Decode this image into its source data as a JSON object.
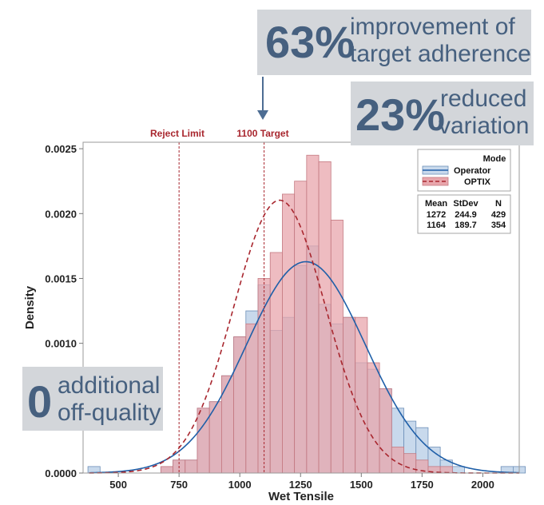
{
  "chart_data": {
    "type": "histogram",
    "xlabel": "Wet Tensile",
    "ylabel": "Density",
    "xlim": [
      355,
      2150
    ],
    "ylim": [
      0,
      0.00255
    ],
    "xticks": [
      500,
      750,
      1000,
      1250,
      1500,
      1750,
      2000
    ],
    "yticks": [
      0.0,
      0.0005,
      0.001,
      0.0015,
      0.002,
      0.0025
    ],
    "ytick_labels": [
      "0.0000",
      "0.0005",
      "0.0010",
      "0.0015",
      "0.0020",
      "0.0025"
    ],
    "bin_width": 50,
    "first_bin_start": 375,
    "series": [
      {
        "name": "Operator",
        "mean": 1272,
        "stdev": 244.9,
        "n": 429,
        "fill": "#c8d9ec",
        "stroke": "#6d8fb8",
        "curve": "#1f5fa8",
        "dash": "none",
        "values": [
          5e-05,
          0,
          0,
          0,
          0,
          0,
          5e-05,
          0.0001,
          0.0001,
          0.0005,
          0.00055,
          0.00075,
          0.00105,
          0.00125,
          0.00145,
          0.0011,
          0.0012,
          0.0016,
          0.00175,
          0.0013,
          0.00115,
          0.0012,
          0.00085,
          0.0008,
          0.00065,
          0.0005,
          0.0004,
          0.00035,
          0.0002,
          0.0001,
          5e-05,
          0,
          0,
          0,
          5e-05,
          5e-05
        ]
      },
      {
        "name": "OPTIX",
        "mean": 1164,
        "stdev": 189.7,
        "n": 354,
        "fill": "#e8a6ac",
        "stroke": "#c47a82",
        "curve": "#a8262e",
        "dash": "6,4",
        "values": [
          0,
          0,
          0,
          0,
          0,
          0,
          5e-05,
          0.0001,
          0.0001,
          0.0005,
          0.00055,
          0.00075,
          0.00105,
          0.00115,
          0.0015,
          0.0017,
          0.00215,
          0.00225,
          0.00245,
          0.0024,
          0.00195,
          0.0012,
          0.0012,
          0.00085,
          0.00065,
          0.0002,
          0.00015,
          0.0001,
          5e-05,
          5e-05,
          0,
          0,
          0,
          0,
          0,
          0
        ]
      }
    ],
    "reference_lines": [
      {
        "label": "Reject Limit",
        "x": 750,
        "color": "#a8262e"
      },
      {
        "label": "1100 Target",
        "x": 1100,
        "color": "#a8262e"
      }
    ],
    "legend": {
      "title": "Mode",
      "entries": [
        "Operator",
        "OPTIX"
      ],
      "stats_headers": [
        "Mean",
        "StDev",
        "N"
      ],
      "stats_rows": [
        [
          "1272",
          "244.9",
          "429"
        ],
        [
          "1164",
          "189.7",
          "354"
        ]
      ]
    }
  },
  "callouts": {
    "improvement": {
      "big": "63%",
      "line1": "improvement of",
      "line2": "target adherence"
    },
    "variation": {
      "big": "23%",
      "line1": "reduced",
      "line2": "variation"
    },
    "offquality": {
      "big": "0",
      "line1": "additional",
      "line2": "off-quality"
    }
  },
  "colors": {
    "callout_bg": "#d3d6da",
    "callout_text": "#46607f",
    "arrow": "#4d6d93"
  }
}
